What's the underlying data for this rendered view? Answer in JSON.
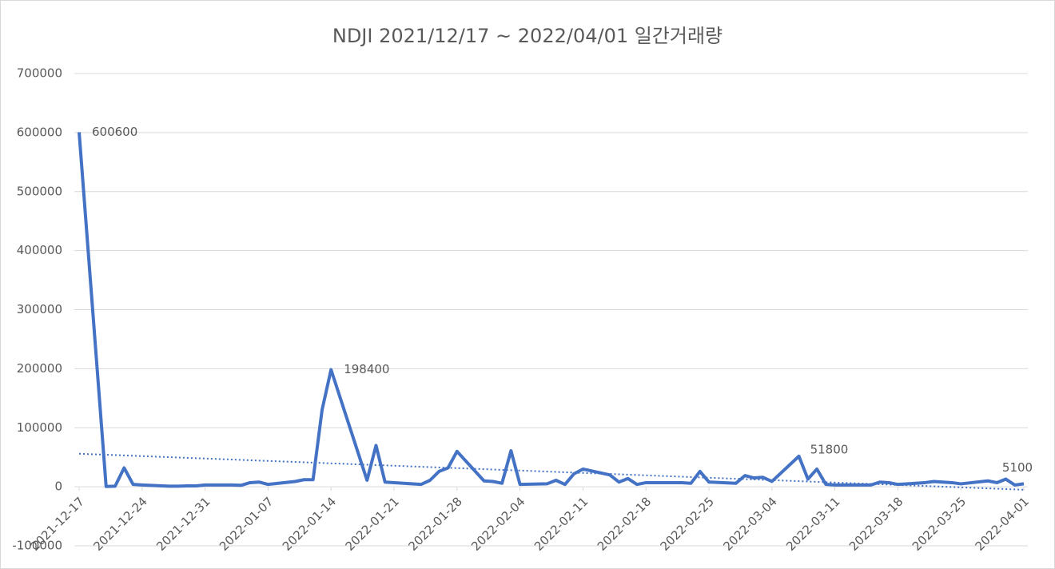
{
  "chart_data": {
    "type": "line",
    "title": "NDJI 2021/12/17 ~ 2022/04/01 일간거래량",
    "x": [
      "2021-12-17",
      "2021-12-20",
      "2021-12-21",
      "2021-12-22",
      "2021-12-23",
      "2021-12-24",
      "2021-12-27",
      "2021-12-28",
      "2021-12-29",
      "2021-12-30",
      "2021-12-31",
      "2022-01-03",
      "2022-01-04",
      "2022-01-05",
      "2022-01-06",
      "2022-01-07",
      "2022-01-10",
      "2022-01-11",
      "2022-01-12",
      "2022-01-13",
      "2022-01-14",
      "2022-01-18",
      "2022-01-19",
      "2022-01-20",
      "2022-01-24",
      "2022-01-25",
      "2022-01-26",
      "2022-01-27",
      "2022-01-28",
      "2022-01-31",
      "2022-02-01",
      "2022-02-02",
      "2022-02-03",
      "2022-02-04",
      "2022-02-07",
      "2022-02-08",
      "2022-02-09",
      "2022-02-10",
      "2022-02-11",
      "2022-02-14",
      "2022-02-15",
      "2022-02-16",
      "2022-02-17",
      "2022-02-18",
      "2022-02-21",
      "2022-02-22",
      "2022-02-23",
      "2022-02-24",
      "2022-02-25",
      "2022-02-28",
      "2022-03-01",
      "2022-03-02",
      "2022-03-03",
      "2022-03-04",
      "2022-03-07",
      "2022-03-08",
      "2022-03-09",
      "2022-03-10",
      "2022-03-11",
      "2022-03-14",
      "2022-03-15",
      "2022-03-16",
      "2022-03-17",
      "2022-03-18",
      "2022-03-21",
      "2022-03-22",
      "2022-03-23",
      "2022-03-24",
      "2022-03-25",
      "2022-03-28",
      "2022-03-29",
      "2022-03-30",
      "2022-03-31",
      "2022-04-01"
    ],
    "series": [
      {
        "color": "#4472c4",
        "values": [
          600600,
          500,
          1000,
          32000,
          4000,
          3000,
          1000,
          1000,
          1500,
          1500,
          3000,
          3000,
          2500,
          7000,
          8000,
          4000,
          9000,
          12000,
          12000,
          130000,
          198400,
          11000,
          70000,
          8000,
          4000,
          11000,
          26000,
          32000,
          60000,
          10000,
          9000,
          6000,
          61000,
          4000,
          5000,
          11000,
          4000,
          22000,
          30000,
          20000,
          8000,
          14000,
          4000,
          7000,
          7000,
          7000,
          6000,
          26000,
          8000,
          6000,
          19000,
          15000,
          16000,
          9000,
          51800,
          13000,
          30000,
          4000,
          3000,
          3000,
          3000,
          8000,
          7000,
          4000,
          7000,
          9000,
          8000,
          7000,
          5000,
          10000,
          7000,
          13000,
          3000,
          5100
        ]
      }
    ],
    "trendline": {
      "color": "#4472c4",
      "values": [
        56000,
        -5000
      ]
    },
    "annotations": [
      {
        "x": "2021-12-17",
        "y": 600600
      },
      {
        "x": "2022-01-14",
        "y": 198400
      },
      {
        "x": "2022-03-07",
        "y": 51800
      },
      {
        "x": "2022-04-01",
        "y": 5100
      }
    ],
    "xlim": [
      "2021-12-17",
      "2022-04-01"
    ],
    "xticks": [
      "2021-12-17",
      "2021-12-24",
      "2021-12-31",
      "2022-01-07",
      "2022-01-14",
      "2022-01-21",
      "2022-01-28",
      "2022-02-04",
      "2022-02-11",
      "2022-02-18",
      "2022-02-25",
      "2022-03-04",
      "2022-03-11",
      "2022-03-18",
      "2022-03-25",
      "2022-04-01"
    ],
    "ylim": [
      -100000,
      700000
    ],
    "yticks": [
      -100000,
      0,
      100000,
      200000,
      300000,
      400000,
      500000,
      600000,
      700000
    ],
    "grid": true
  }
}
